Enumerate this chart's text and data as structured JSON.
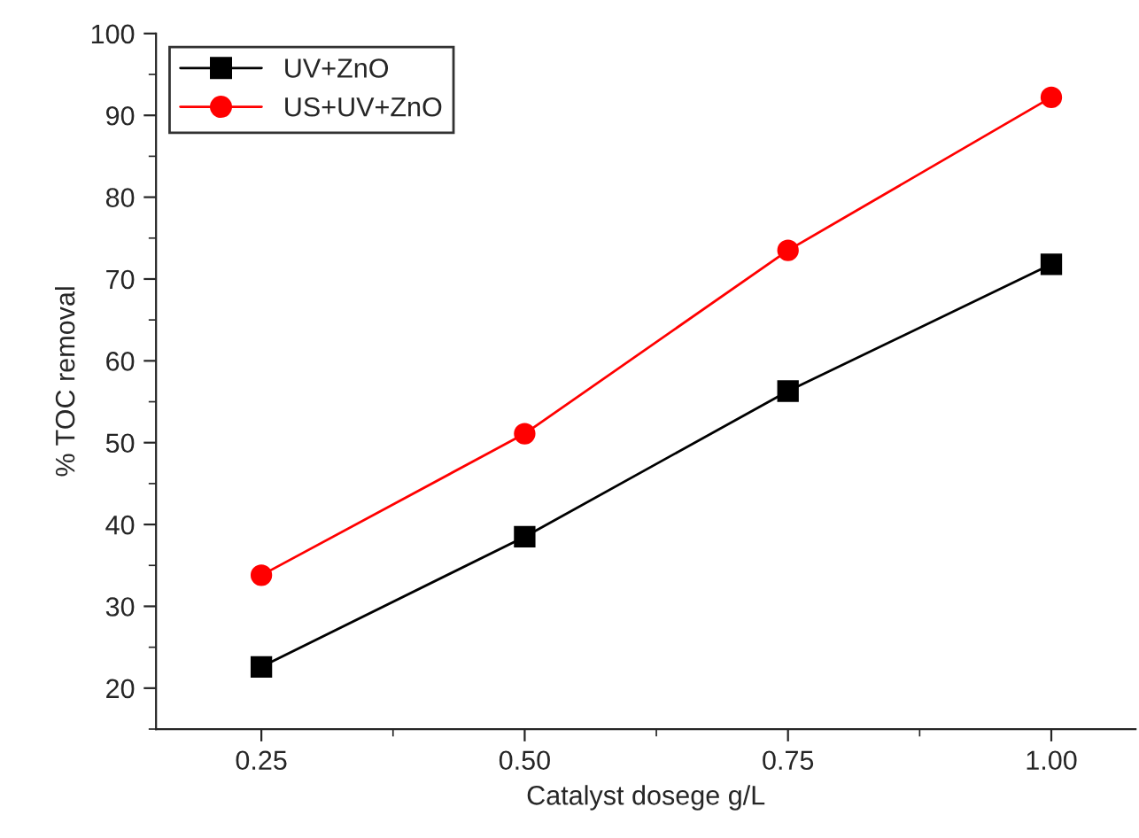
{
  "chart_data": {
    "type": "line",
    "xlabel": "Catalyst dosege g/L",
    "ylabel": "% TOC removal",
    "x": [
      0.25,
      0.5,
      0.75,
      1.0
    ],
    "series": [
      {
        "name": "UV+ZnO",
        "color": "#000000",
        "marker": "square",
        "values": [
          22.6,
          38.5,
          56.3,
          71.8
        ]
      },
      {
        "name": "US+UV+ZnO",
        "color": "#ff0000",
        "marker": "circle",
        "values": [
          33.8,
          51.1,
          73.5,
          92.2
        ]
      }
    ],
    "xlim": [
      0.15,
      1.08
    ],
    "xticks": [
      {
        "value": 0.25,
        "label": "0.25"
      },
      {
        "value": 0.5,
        "label": "0.50"
      },
      {
        "value": 0.75,
        "label": "0.75"
      },
      {
        "value": 1.0,
        "label": "1.00"
      }
    ],
    "ylim": [
      15,
      100
    ],
    "yticks": [
      20,
      30,
      40,
      50,
      60,
      70,
      80,
      90,
      100
    ],
    "grid": false,
    "legend": "top left",
    "line_style": "solid"
  }
}
